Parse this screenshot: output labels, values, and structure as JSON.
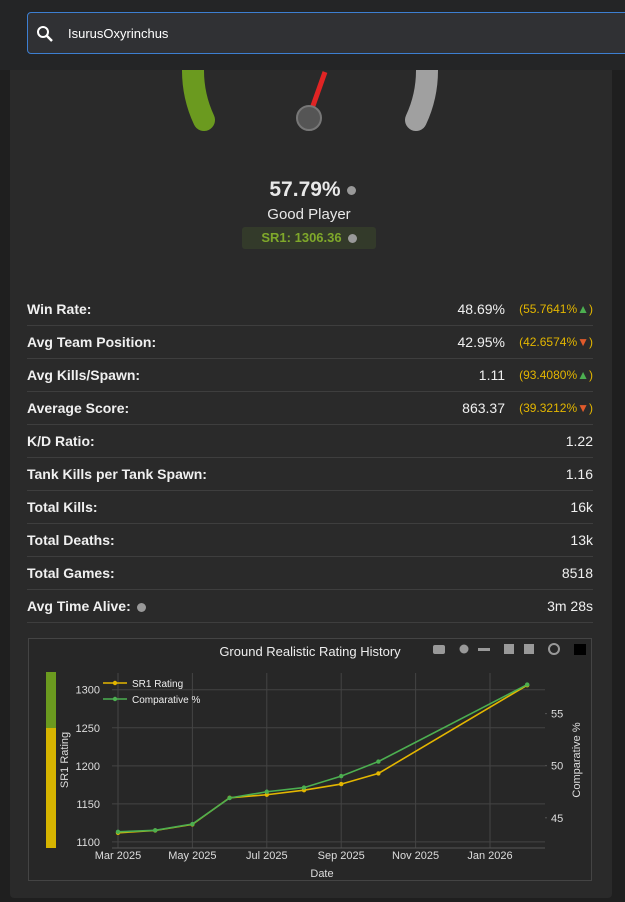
{
  "search": {
    "query": "IsurusOxyrinchus"
  },
  "summary": {
    "percent": "57.79%",
    "rank": "Good Player",
    "rating": "SR1: 1306.36"
  },
  "stats": [
    {
      "label": "Win Rate:",
      "value": "48.69%",
      "compare": "55.7641%",
      "arrow": "▲",
      "trend": "up"
    },
    {
      "label": "Avg Team Position:",
      "value": "42.95%",
      "compare": "42.6574%",
      "arrow": "▼",
      "trend": "down"
    },
    {
      "label": "Avg Kills/Spawn:",
      "value": "1.11",
      "compare": "93.4080%",
      "arrow": "▲",
      "trend": "up"
    },
    {
      "label": "Average Score:",
      "value": "863.37",
      "compare": "39.3212%",
      "arrow": "▼",
      "trend": "down"
    },
    {
      "label": "K/D Ratio:",
      "value": "1.22"
    },
    {
      "label": "Tank Kills per Tank Spawn:",
      "value": "1.16"
    },
    {
      "label": "Total Kills:",
      "value": "16k"
    },
    {
      "label": "Total Deaths:",
      "value": "13k"
    },
    {
      "label": "Total Games:",
      "value": "8518"
    },
    {
      "label": "Avg Time Alive:",
      "value": "3m 28s",
      "info": true
    }
  ],
  "chart_data": {
    "type": "line",
    "title": "Ground Realistic Rating History",
    "x": [
      "2025-03",
      "2025-04",
      "2025-05",
      "2025-06",
      "2025-07",
      "2025-08",
      "2025-09",
      "2025-10",
      "2026-02"
    ],
    "series": [
      {
        "name": "SR1 Rating",
        "color": "#e3b600",
        "values": [
          1112,
          1115,
          1123,
          1158,
          1162,
          1168,
          1176,
          1190,
          1306
        ]
      },
      {
        "name": "Comparative %",
        "color": "#4caf50",
        "axis": "y2",
        "values": [
          43.65,
          43.8,
          44.4,
          46.9,
          47.5,
          47.9,
          49.0,
          50.4,
          57.79
        ]
      }
    ],
    "x_label": "Date",
    "y_label": "SR1 Rating",
    "y2_label": "Comparative %",
    "ylim": [
      1092,
      1322
    ],
    "yticks": [
      1100,
      1150,
      1200,
      1250,
      1300
    ],
    "y2lim": [
      42.1,
      58.9
    ],
    "y2ticks": [
      45,
      50,
      55
    ],
    "xticks": [
      {
        "value": "2025-03",
        "label": "Mar 2025"
      },
      {
        "value": "2025-05",
        "label": "May 2025"
      },
      {
        "value": "2025-07",
        "label": "Jul 2025"
      },
      {
        "value": "2025-09",
        "label": "Sep 2025"
      },
      {
        "value": "2025-11",
        "label": "Nov 2025"
      },
      {
        "value": "2026-01",
        "label": "Jan 2026"
      }
    ],
    "grid": true,
    "legend": "top-left"
  }
}
